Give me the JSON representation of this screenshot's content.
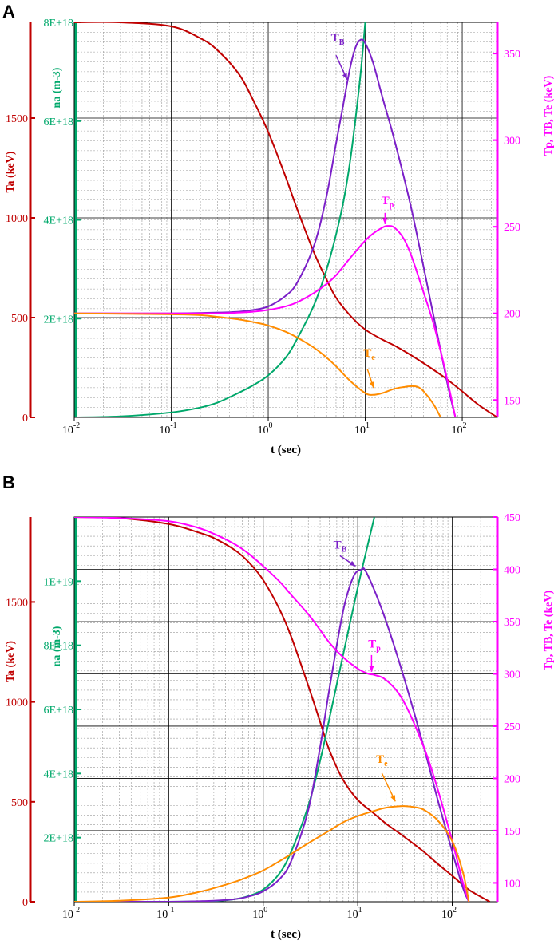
{
  "figure": {
    "panel_labels": [
      "A",
      "B"
    ]
  },
  "colors": {
    "ta": "#c00000",
    "na": "#00a86b",
    "tp": "#ff00ff",
    "tb": "#7b20c8",
    "te": "#ff8c00",
    "grid_major": "#000000",
    "grid_minor": "#999999"
  },
  "chart_data": [
    {
      "panel": "A",
      "type": "line",
      "xscale": "log",
      "xlim": [
        0.01,
        230
      ],
      "xlabel": "t  (sec)",
      "xticks": [
        {
          "v": 0.01,
          "base": "10",
          "exp": "-2"
        },
        {
          "v": 0.1,
          "base": "10",
          "exp": "-1"
        },
        {
          "v": 1,
          "base": "10",
          "exp": "0"
        },
        {
          "v": 10,
          "base": "10",
          "exp": "1"
        },
        {
          "v": 100,
          "base": "10",
          "exp": "2"
        }
      ],
      "axes": {
        "ta": {
          "label": "Ta (keV)",
          "ylim": [
            0,
            1980
          ],
          "ticks": [
            0,
            500,
            1000,
            1500
          ],
          "tick_labels": [
            "0",
            "500",
            "1000",
            "1500"
          ]
        },
        "na": {
          "label": "na (m-3)",
          "ylim": [
            0,
            8e+18
          ],
          "ticks": [
            2e+18,
            4e+18,
            6e+18,
            8e+18
          ],
          "tick_labels": [
            "2E+18",
            "4E+18",
            "6E+18",
            "8E+18"
          ]
        },
        "right": {
          "label": "Tp, TB, Te (keV)",
          "ylim": [
            140,
            368
          ],
          "ticks": [
            150,
            200,
            250,
            300,
            350
          ],
          "tick_labels": [
            "150",
            "200",
            "250",
            "300",
            "350"
          ]
        }
      },
      "hgrid_major": [
        500,
        1000,
        1500
      ],
      "series": [
        {
          "name": "Ta",
          "axis": "ta",
          "color_key": "ta",
          "x": [
            0.01,
            0.03,
            0.1,
            0.2,
            0.3,
            0.5,
            0.7,
            1,
            1.5,
            2,
            3,
            4,
            5,
            7,
            10,
            15,
            20,
            30,
            50,
            70,
            100,
            150,
            230
          ],
          "y": [
            1980,
            1980,
            1960,
            1900,
            1840,
            1720,
            1590,
            1430,
            1210,
            1040,
            820,
            690,
            600,
            510,
            440,
            390,
            360,
            310,
            240,
            190,
            130,
            60,
            0
          ]
        },
        {
          "name": "na",
          "axis": "na",
          "color_key": "na",
          "x": [
            0.01,
            0.03,
            0.1,
            0.2,
            0.3,
            0.5,
            0.7,
            1,
            1.5,
            2,
            3,
            4,
            5,
            6,
            7,
            8,
            9,
            10
          ],
          "y": [
            0,
            2e+16,
            1e+17,
            2e+17,
            3e+17,
            5e+17,
            6.5e+17,
            8.5e+17,
            1.2e+18,
            1.6e+18,
            2.3e+18,
            3e+18,
            3.7e+18,
            4.4e+18,
            5.2e+18,
            6.1e+18,
            7e+18,
            8e+18
          ]
        },
        {
          "name": "TB",
          "axis": "right",
          "color_key": "tb",
          "x": [
            0.01,
            0.1,
            0.3,
            0.5,
            0.7,
            1,
            1.5,
            2,
            3,
            4,
            5,
            6,
            7,
            8,
            9,
            10,
            12,
            15,
            20,
            30,
            50,
            70,
            85
          ],
          "y": [
            200,
            200,
            200.5,
            201,
            202,
            204,
            210,
            218,
            240,
            268,
            298,
            322,
            342,
            354,
            358,
            356,
            345,
            325,
            300,
            260,
            200,
            160,
            140
          ]
        },
        {
          "name": "Tp",
          "axis": "right",
          "color_key": "tp",
          "x": [
            0.01,
            0.1,
            0.3,
            0.5,
            0.7,
            1,
            1.5,
            2,
            3,
            4,
            5,
            7,
            10,
            12,
            15,
            17,
            20,
            25,
            30,
            40,
            50,
            60,
            70,
            85
          ],
          "y": [
            200,
            200,
            200,
            200.5,
            201,
            202,
            204,
            206.5,
            212,
            217,
            222,
            232,
            242,
            246,
            249.5,
            250.5,
            249.5,
            243,
            233,
            212,
            195,
            178,
            162,
            140
          ]
        },
        {
          "name": "Te",
          "axis": "right",
          "color_key": "te",
          "x": [
            0.01,
            0.1,
            0.2,
            0.3,
            0.5,
            0.7,
            1,
            1.5,
            2,
            3,
            4,
            5,
            7,
            10,
            12,
            15,
            20,
            25,
            30,
            35,
            40,
            50,
            60
          ],
          "y": [
            200,
            199.5,
            199,
            198,
            196.5,
            195,
            193,
            189.5,
            186,
            180,
            174.5,
            169.5,
            161,
            154,
            153,
            154,
            156.5,
            157.5,
            158,
            157.5,
            155,
            148,
            140
          ]
        }
      ],
      "annotations": [
        {
          "base": "T",
          "sub": "B",
          "color_key": "tb",
          "label_at": [
            5.2,
            357
          ],
          "arrow_from": [
            5.0,
            349
          ],
          "arrow_to": [
            6.5,
            335
          ]
        },
        {
          "base": "T",
          "sub": "p",
          "color_key": "tp",
          "label_at": [
            17,
            263
          ],
          "arrow_from": [
            16,
            258
          ],
          "arrow_to": [
            16,
            251.5
          ]
        },
        {
          "base": "T",
          "sub": "e",
          "color_key": "te",
          "label_at": [
            11,
            175
          ],
          "arrow_from": [
            10.5,
            168
          ],
          "arrow_to": [
            12.2,
            157
          ]
        }
      ]
    },
    {
      "panel": "B",
      "type": "line",
      "xscale": "log",
      "xlim": [
        0.01,
        300
      ],
      "xlabel": "t (sec)",
      "xticks": [
        {
          "v": 0.01,
          "base": "10",
          "exp": "-2"
        },
        {
          "v": 0.1,
          "base": "10",
          "exp": "-1"
        },
        {
          "v": 1,
          "base": "10",
          "exp": "0"
        },
        {
          "v": 10,
          "base": "10",
          "exp": "1"
        },
        {
          "v": 100,
          "base": "10",
          "exp": "2"
        }
      ],
      "axes": {
        "ta": {
          "label": "Ta (keV)",
          "ylim": [
            0,
            1925
          ],
          "ticks": [
            0,
            500,
            1000,
            1500
          ],
          "tick_labels": [
            "0",
            "500",
            "1000",
            "1500"
          ]
        },
        "na": {
          "label": "na (m-3)",
          "ylim": [
            0,
            1.2e+19
          ],
          "ticks": [
            2e+18,
            4e+18,
            6e+18,
            8e+18,
            1e+19
          ],
          "tick_labels": [
            "2E+18",
            "4E+18",
            "6E+18",
            "8E+18",
            "1E+19"
          ]
        },
        "right": {
          "label": "Tp, TB, Te (keV)",
          "ylim": [
            82,
            450
          ],
          "ticks": [
            100,
            150,
            200,
            250,
            300,
            350,
            400,
            450
          ],
          "tick_labels": [
            "100",
            "150",
            "200",
            "250",
            "300",
            "350",
            "400",
            "450"
          ]
        }
      },
      "hgrid_major": [
        100,
        150,
        200,
        250,
        300,
        350,
        400
      ],
      "series": [
        {
          "name": "Ta",
          "axis": "ta",
          "color_key": "ta",
          "x": [
            0.01,
            0.03,
            0.1,
            0.2,
            0.3,
            0.5,
            0.7,
            1,
            1.5,
            2,
            3,
            4,
            5,
            7,
            10,
            15,
            20,
            30,
            50,
            70,
            100,
            150,
            250
          ],
          "y": [
            1925,
            1920,
            1890,
            1850,
            1820,
            1760,
            1700,
            1610,
            1460,
            1320,
            1080,
            900,
            760,
            610,
            510,
            440,
            390,
            330,
            250,
            190,
            130,
            60,
            0
          ]
        },
        {
          "name": "na",
          "axis": "na",
          "color_key": "na",
          "x": [
            0.01,
            0.1,
            0.3,
            0.5,
            0.7,
            1,
            1.5,
            2,
            3,
            4,
            5,
            7,
            10,
            12,
            15
          ],
          "y": [
            0,
            0,
            2e+16,
            8e+16,
            1.8e+17,
            3.8e+17,
            9e+17,
            1.6e+18,
            3e+18,
            4.4e+18,
            5.7e+18,
            7.7e+18,
            9.8e+18,
            1.08e+19,
            1.2e+19
          ]
        },
        {
          "name": "TB",
          "axis": "right",
          "color_key": "tb",
          "x": [
            0.01,
            0.1,
            0.2,
            0.3,
            0.5,
            0.7,
            1,
            1.5,
            2,
            3,
            4,
            5,
            7,
            9,
            11,
            12,
            15,
            20,
            30,
            50,
            70,
            100,
            130,
            150
          ],
          "y": [
            82,
            82,
            82.5,
            83,
            84.5,
            87,
            92,
            104,
            122,
            170,
            230,
            285,
            360,
            393,
            400,
            399,
            380,
            350,
            300,
            230,
            180,
            130,
            95,
            82
          ]
        },
        {
          "name": "Tp",
          "axis": "right",
          "color_key": "tp",
          "x": [
            0.01,
            0.03,
            0.1,
            0.2,
            0.3,
            0.5,
            0.7,
            1,
            1.5,
            2,
            3,
            4,
            5,
            7,
            10,
            13,
            15,
            20,
            30,
            50,
            70,
            100,
            130,
            150
          ],
          "y": [
            450,
            449,
            446,
            440,
            434,
            424,
            415,
            403,
            388,
            375,
            357,
            342,
            330,
            316,
            305,
            300,
            299,
            294,
            275,
            230,
            190,
            140,
            100,
            82
          ]
        },
        {
          "name": "Te",
          "axis": "right",
          "color_key": "te",
          "x": [
            0.01,
            0.03,
            0.1,
            0.2,
            0.3,
            0.5,
            0.7,
            1,
            1.5,
            2,
            3,
            5,
            7,
            10,
            15,
            20,
            30,
            40,
            50,
            70,
            100,
            130,
            150
          ],
          "y": [
            82,
            83,
            86,
            91,
            95,
            101,
            106,
            112,
            121,
            128,
            138,
            150,
            158,
            164,
            169,
            172,
            173.5,
            172.5,
            170,
            160,
            140,
            110,
            82
          ]
        }
      ],
      "annotations": [
        {
          "base": "T",
          "sub": "B",
          "color_key": "tb",
          "label_at": [
            6.5,
            420
          ],
          "arrow_from": [
            6.5,
            413
          ],
          "arrow_to": [
            9.5,
            403
          ]
        },
        {
          "base": "T",
          "sub": "p",
          "color_key": "tp",
          "label_at": [
            15,
            325
          ],
          "arrow_from": [
            14,
            318
          ],
          "arrow_to": [
            14,
            302
          ]
        },
        {
          "base": "T",
          "sub": "e",
          "color_key": "te",
          "label_at": [
            18,
            215
          ],
          "arrow_from": [
            18,
            205
          ],
          "arrow_to": [
            25,
            178
          ]
        }
      ]
    }
  ]
}
